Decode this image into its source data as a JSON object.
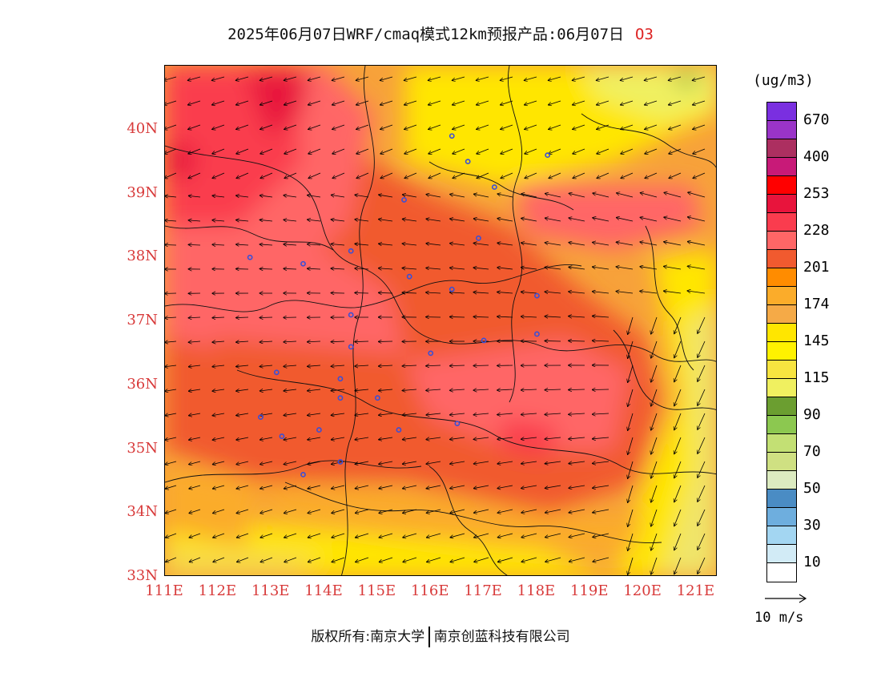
{
  "title": {
    "text": "2025年06月07日WRF/cmaq模式12km预报产品:06月07日",
    "species": "O3"
  },
  "map": {
    "lon_range": [
      111,
      121.4
    ],
    "lat_range": [
      33,
      41
    ],
    "lat_labels": [
      "40N",
      "39N",
      "38N",
      "37N",
      "36N",
      "35N",
      "34N",
      "33N"
    ],
    "lat_values": [
      40,
      39,
      38,
      37,
      36,
      35,
      34,
      33
    ],
    "lon_labels": [
      "111E",
      "112E",
      "113E",
      "114E",
      "115E",
      "116E",
      "117E",
      "118E",
      "119E",
      "120E",
      "121E"
    ],
    "lon_values": [
      111,
      112,
      113,
      114,
      115,
      116,
      117,
      118,
      119,
      120,
      121
    ],
    "stations": [
      [
        116.4,
        39.9
      ],
      [
        116.7,
        39.5
      ],
      [
        118.2,
        39.6
      ],
      [
        117.2,
        39.1
      ],
      [
        115.5,
        38.9
      ],
      [
        116.9,
        38.3
      ],
      [
        112.6,
        38.0
      ],
      [
        113.6,
        37.9
      ],
      [
        114.5,
        38.1
      ],
      [
        115.6,
        37.7
      ],
      [
        116.4,
        37.5
      ],
      [
        118.0,
        37.4
      ],
      [
        118.0,
        36.8
      ],
      [
        117.0,
        36.7
      ],
      [
        114.5,
        37.1
      ],
      [
        114.5,
        36.6
      ],
      [
        116.0,
        36.5
      ],
      [
        113.1,
        36.2
      ],
      [
        114.3,
        36.1
      ],
      [
        114.3,
        35.8
      ],
      [
        115.0,
        35.8
      ],
      [
        112.8,
        35.5
      ],
      [
        113.2,
        35.2
      ],
      [
        113.9,
        35.3
      ],
      [
        115.4,
        35.3
      ],
      [
        116.5,
        35.4
      ],
      [
        114.3,
        34.8
      ],
      [
        113.6,
        34.6
      ]
    ],
    "colors": {
      "land_base": "#f7a23a",
      "station": "#3a4fd8"
    }
  },
  "colorbar": {
    "unit": "(ug/m3)",
    "tick_labels": [
      "670",
      "400",
      "253",
      "228",
      "201",
      "174",
      "145",
      "115",
      "90",
      "70",
      "50",
      "30",
      "10"
    ],
    "colors": [
      "#7a2fe0",
      "#9a34c8",
      "#ac2f60",
      "#c81a78",
      "#ff0000",
      "#e8143c",
      "#fa3c4e",
      "#ff6666",
      "#f15a2f",
      "#ff8c00",
      "#fbac2a",
      "#f5aa47",
      "#ffe600",
      "#fff200",
      "#f7e440",
      "#f0f060",
      "#6b9e30",
      "#8cc850",
      "#c3e074",
      "#cfe082",
      "#dcebc0",
      "#4a8cc4",
      "#6eaede",
      "#a3d6f2",
      "#d2ebf6",
      "#ffffff"
    ]
  },
  "wind_reference": {
    "label": "10 m/s"
  },
  "copyright": {
    "left": "版权所有:南京大学",
    "right": "南京创蓝科技有限公司"
  }
}
